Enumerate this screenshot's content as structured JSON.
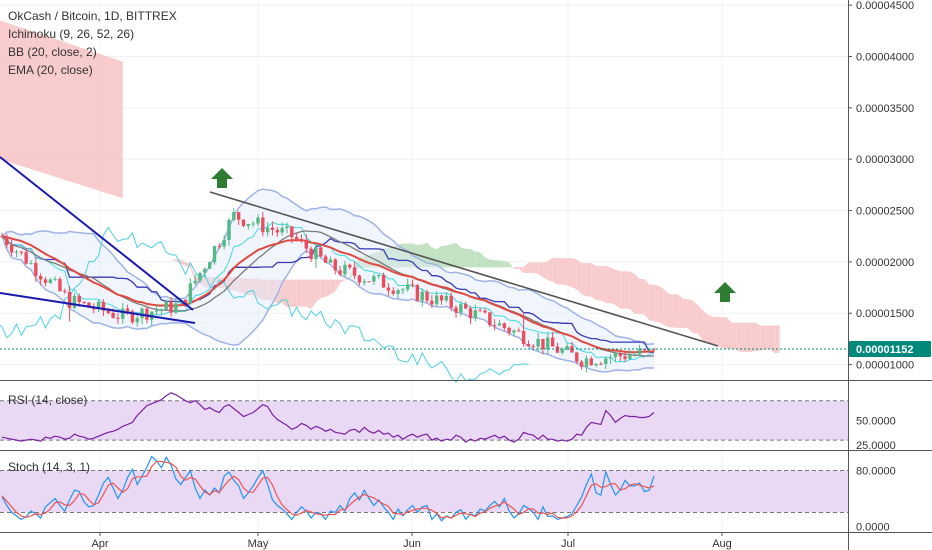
{
  "chart_data": {
    "type": "candlestick",
    "title": "OkCash / Bitcoin, 1D, BITTREX",
    "indicators": [
      "Ichimoku (9, 26, 52, 26)",
      "BB (20, close, 2)",
      "EMA (20, close)"
    ],
    "price_axis": {
      "ticks": [
        "0.00004500",
        "0.00004000",
        "0.00003500",
        "0.00003000",
        "0.00002500",
        "0.00002000",
        "0.00001500",
        "0.00001000"
      ],
      "range": [
        8.5e-06,
        4.55e-05
      ],
      "last_price": "0.00001152",
      "last_value": 1.152e-05
    },
    "time_axis": {
      "labels": [
        "Apr",
        "May",
        "Jun",
        "Jul",
        "Aug"
      ]
    },
    "candles": {
      "count": 136,
      "start_price": 2.25e-05,
      "waypoints": [
        [
          0,
          2.25e-05
        ],
        [
          14,
          1.62e-05
        ],
        [
          25,
          1.47e-05
        ],
        [
          37,
          1.58e-05
        ],
        [
          48,
          2.45e-05
        ],
        [
          60,
          2.25e-05
        ],
        [
          68,
          1.95e-05
        ],
        [
          80,
          1.78e-05
        ],
        [
          95,
          1.55e-05
        ],
        [
          108,
          1.28e-05
        ],
        [
          120,
          1.05e-05
        ],
        [
          135,
          1.12e-05
        ]
      ]
    },
    "cloud": {
      "bearish_color": "#f7c3c3",
      "bullish_color": "#b9ddb8"
    },
    "rsi": {
      "label": "RSI (14, close)",
      "ticks": [
        "50.0000",
        "25.0000"
      ],
      "range": [
        20,
        90
      ],
      "values": [
        33,
        32,
        31,
        30,
        29,
        30,
        31,
        30,
        29,
        33,
        32,
        34,
        33,
        31,
        32,
        36,
        34,
        33,
        31,
        32,
        34,
        36,
        38,
        39,
        41,
        44,
        46,
        48,
        55,
        60,
        65,
        67,
        69,
        71,
        75,
        78,
        76,
        73,
        70,
        68,
        70,
        66,
        61,
        63,
        60,
        58,
        64,
        66,
        62,
        58,
        54,
        56,
        58,
        62,
        66,
        64,
        56,
        51,
        48,
        45,
        41,
        43,
        47,
        45,
        41,
        44,
        42,
        39,
        41,
        38,
        37,
        36,
        40,
        41,
        38,
        43,
        39,
        37,
        40,
        36,
        37,
        33,
        35,
        31,
        34,
        36,
        33,
        35,
        36,
        30,
        32,
        29,
        31,
        30,
        35,
        33,
        28,
        31,
        29,
        32,
        31,
        33,
        35,
        32,
        34,
        30,
        28,
        31,
        38,
        36,
        35,
        31,
        35,
        31,
        31,
        29,
        30,
        29,
        31,
        36,
        35,
        43,
        48,
        47,
        46,
        60,
        55,
        48,
        52,
        55,
        54,
        54,
        53,
        53,
        54,
        58
      ]
    },
    "stoch": {
      "label": "Stoch (14, 3, 1)",
      "ticks": [
        "80.0000",
        "0.0000"
      ],
      "range": [
        -8,
        108
      ],
      "k": [
        42,
        30,
        20,
        15,
        10,
        14,
        22,
        18,
        12,
        28,
        34,
        40,
        30,
        22,
        38,
        52,
        50,
        35,
        28,
        30,
        45,
        62,
        70,
        55,
        40,
        52,
        70,
        82,
        60,
        72,
        85,
        100,
        94,
        84,
        99,
        88,
        68,
        60,
        70,
        80,
        55,
        40,
        52,
        45,
        55,
        48,
        72,
        78,
        66,
        58,
        40,
        48,
        58,
        70,
        80,
        60,
        38,
        30,
        25,
        18,
        10,
        20,
        28,
        22,
        12,
        20,
        18,
        10,
        22,
        20,
        30,
        22,
        40,
        48,
        38,
        52,
        40,
        30,
        38,
        28,
        20,
        10,
        25,
        15,
        24,
        30,
        20,
        28,
        30,
        10,
        18,
        8,
        15,
        12,
        20,
        24,
        10,
        18,
        15,
        25,
        22,
        30,
        36,
        28,
        40,
        22,
        12,
        18,
        30,
        26,
        20,
        10,
        28,
        14,
        15,
        10,
        12,
        14,
        18,
        30,
        42,
        60,
        75,
        48,
        45,
        78,
        60,
        45,
        52,
        66,
        58,
        58,
        62,
        50,
        52,
        72
      ],
      "d": [
        44,
        36,
        28,
        20,
        15,
        13,
        15,
        18,
        17,
        19,
        25,
        34,
        35,
        31,
        30,
        37,
        47,
        46,
        38,
        31,
        34,
        46,
        59,
        62,
        55,
        49,
        54,
        68,
        71,
        71,
        72,
        86,
        93,
        93,
        92,
        90,
        85,
        72,
        66,
        70,
        68,
        58,
        49,
        46,
        51,
        49,
        58,
        66,
        72,
        67,
        55,
        49,
        49,
        59,
        69,
        70,
        59,
        43,
        31,
        24,
        18,
        16,
        19,
        23,
        21,
        18,
        17,
        16,
        17,
        17,
        24,
        24,
        31,
        37,
        42,
        46,
        43,
        41,
        36,
        32,
        29,
        19,
        18,
        17,
        21,
        23,
        25,
        26,
        26,
        23,
        19,
        12,
        14,
        12,
        16,
        19,
        18,
        17,
        14,
        19,
        21,
        26,
        29,
        31,
        35,
        30,
        25,
        17,
        20,
        25,
        25,
        19,
        19,
        17,
        19,
        13,
        12,
        12,
        15,
        21,
        30,
        44,
        59,
        61,
        56,
        57,
        61,
        61,
        52,
        54,
        59,
        61,
        59,
        57,
        55,
        58
      ]
    },
    "colors": {
      "up": "#53b987",
      "down": "#eb4d5c",
      "ema": "#e04a3f",
      "sma": "#7a7a7a",
      "bb": "#9fb3e8",
      "tenkan": "#3fd9e6",
      "kijun": "#3a3ab5",
      "chikou": "#4dd0e1",
      "trend_blue": "#1a1ab0",
      "trend_gray": "#555555",
      "arrow": "#2e7d32",
      "rsi_line": "#7b1fa2",
      "stoch_k": "#2196f3",
      "stoch_d": "#ef5350",
      "band_fill": "#e9d9f5",
      "price_tag": "#00897b"
    }
  }
}
